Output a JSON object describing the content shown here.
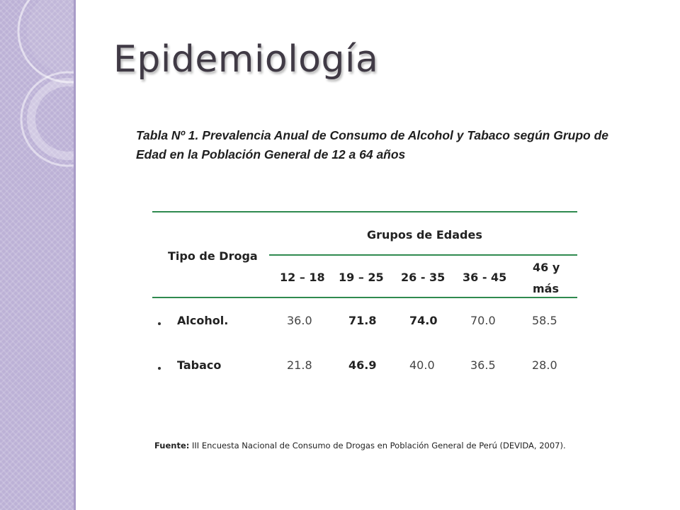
{
  "slide": {
    "title": "Epidemiología",
    "colors": {
      "sidebar": "#bcb1d6",
      "rule": "#2f8a4f",
      "title": "#403a45"
    }
  },
  "table": {
    "caption": "Tabla  Nº 1. Prevalencia Anual de Consumo de Alcohol y Tabaco según Grupo de Edad en la Población General de 12 a 64 años",
    "row_header": "Tipo de Droga",
    "group_header": "Grupos de Edades",
    "columns": [
      "12 – 18",
      "19 – 25",
      "26 - 35",
      "36 - 45",
      "46 y más"
    ],
    "last_column_lines": [
      "46 y",
      "más"
    ],
    "rows": [
      {
        "label": "Alcohol.",
        "values": [
          "36.0",
          "71.8",
          "74.0",
          "70.0",
          "58.5"
        ],
        "bold": [
          false,
          true,
          true,
          false,
          false
        ]
      },
      {
        "label": "Tabaco",
        "values": [
          "21.8",
          "46.9",
          "40.0",
          "36.5",
          "28.0"
        ],
        "bold": [
          false,
          true,
          false,
          false,
          false
        ]
      }
    ]
  },
  "source": {
    "label": "Fuente:",
    "text": " III Encuesta Nacional de Consumo de Drogas en Población General de Perú (DEVIDA, 2007)."
  }
}
